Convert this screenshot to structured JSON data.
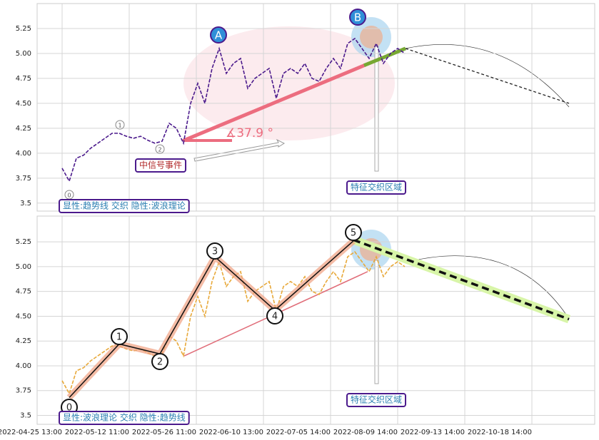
{
  "chart_data": [
    {
      "type": "line",
      "ylim": [
        3.42,
        5.5
      ],
      "yticks": [
        3.5,
        3.75,
        {
          "value": 4,
          "label": "4.00"
        },
        4.25,
        {
          "value": 4.5,
          "label": "4.50"
        },
        4.75,
        {
          "value": 5,
          "label": "5.00"
        },
        5.25
      ],
      "grid": true,
      "series": [
        {
          "color": "#4b1a8c",
          "values": [
            3.85,
            3.72,
            3.95,
            3.98,
            4.05,
            4.1,
            4.15,
            4.2,
            4.2,
            4.17,
            4.15,
            4.17,
            4.13,
            4.1,
            4.12,
            4.3,
            4.25,
            4.1,
            4.5,
            4.7,
            4.5,
            4.85,
            5.05,
            4.8,
            4.9,
            4.95,
            4.65,
            4.75,
            4.8,
            4.85,
            4.55,
            4.8,
            4.85,
            4.8,
            4.9,
            4.75,
            4.72,
            4.85,
            4.95,
            4.85,
            5.1,
            5.15,
            5.05,
            4.95,
            5.1,
            4.9,
            5.0,
            5.05,
            5.0
          ]
        }
      ],
      "trend_line": [
        4.13,
        4.88
      ],
      "trend_extension": [
        4.88,
        5.05
      ],
      "projection": [
        5.05,
        4.5
      ],
      "wave_labels": [
        "0",
        "1",
        "2",
        "A",
        "B"
      ],
      "angle_label": "∡37.9 °",
      "annotations": [
        "中信号事件",
        "特征交织区域",
        "显性:趋势线 交织 隐性:波浪理论"
      ]
    },
    {
      "type": "line",
      "ylim": [
        3.41,
        5.51
      ],
      "yticks": [
        3.5,
        3.75,
        {
          "value": 4,
          "label": "4.00"
        },
        4.25,
        {
          "value": 4.5,
          "label": "4.50"
        },
        4.75,
        {
          "value": 5,
          "label": "5.00"
        },
        5.25
      ],
      "grid": true,
      "series": [
        {
          "color": "#e8a93a",
          "values": [
            3.85,
            3.72,
            3.95,
            3.98,
            4.05,
            4.1,
            4.15,
            4.2,
            4.2,
            4.17,
            4.15,
            4.17,
            4.13,
            4.1,
            4.12,
            4.3,
            4.25,
            4.1,
            4.5,
            4.7,
            4.5,
            4.85,
            5.05,
            4.8,
            4.9,
            4.95,
            4.65,
            4.75,
            4.8,
            4.85,
            4.55,
            4.8,
            4.85,
            4.8,
            4.9,
            4.75,
            4.72,
            4.85,
            4.95,
            4.85,
            5.1,
            5.15,
            5.05,
            4.95,
            5.1,
            4.9,
            5.0,
            5.05,
            5.0
          ]
        }
      ],
      "waves": [
        3.68,
        4.22,
        4.12,
        5.1,
        4.56,
        5.26
      ],
      "wave_labels": [
        "0",
        "1",
        "2",
        "3",
        "4",
        "5"
      ],
      "trend_line": [
        4.1,
        4.95
      ],
      "projection": [
        5.27,
        4.47
      ],
      "annotations": [
        "特征交织区域",
        "显性:波浪理论 交织 隐性:趋势线"
      ],
      "xticks": [
        "2022-04-25 13:00",
        "2022-05-12 11:00",
        "2022-05-26 11:00",
        "2022-06-10 13:00",
        "2022-07-05 14:00",
        "2022-08-09 14:00",
        "2022-09-13 14:00",
        "2022-10-18 14:00"
      ]
    }
  ]
}
